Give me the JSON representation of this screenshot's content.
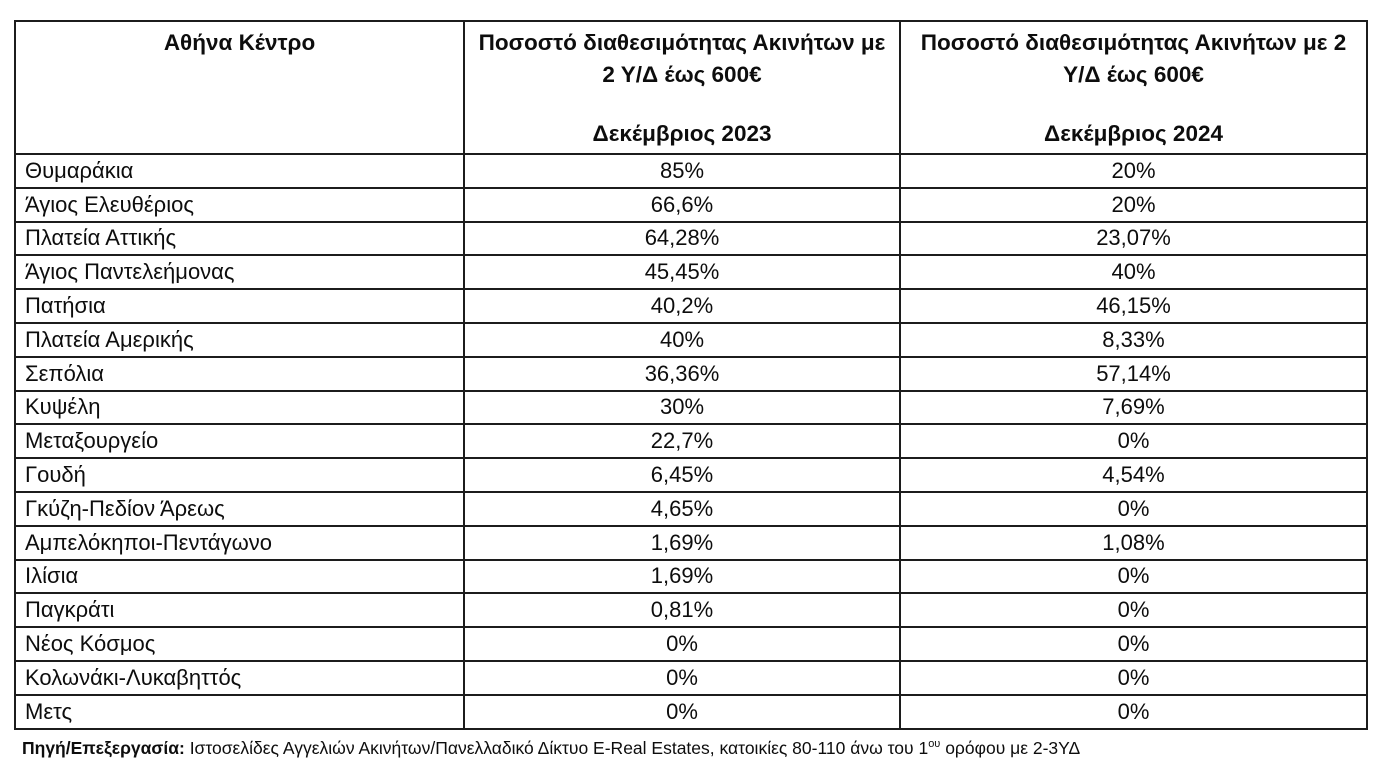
{
  "table": {
    "columns": [
      {
        "id": "area",
        "title": "Αθήνα Κέντρο",
        "period": ""
      },
      {
        "id": "dec2023",
        "title": "Ποσοστό διαθεσιμότητας Ακινήτων με 2 Υ/Δ έως 600€",
        "period": "Δεκέμβριος 2023"
      },
      {
        "id": "dec2024",
        "title": "Ποσοστό διαθεσιμότητας Ακινήτων με 2 Υ/Δ έως 600€",
        "period": "Δεκέμβριος 2024"
      }
    ],
    "rows": [
      [
        "Θυμαράκια",
        "85%",
        "20%"
      ],
      [
        "Άγιος Ελευθέριος",
        "66,6%",
        "20%"
      ],
      [
        "Πλατεία Αττικής",
        "64,28%",
        "23,07%"
      ],
      [
        "Άγιος Παντελεήμονας",
        "45,45%",
        "40%"
      ],
      [
        "Πατήσια",
        "40,2%",
        "46,15%"
      ],
      [
        "Πλατεία Αμερικής",
        "40%",
        "8,33%"
      ],
      [
        "Σεπόλια",
        "36,36%",
        "57,14%"
      ],
      [
        "Κυψέλη",
        "30%",
        "7,69%"
      ],
      [
        "Μεταξουργείο",
        "22,7%",
        "0%"
      ],
      [
        "Γουδή",
        "6,45%",
        "4,54%"
      ],
      [
        "Γκύζη-Πεδίον Άρεως",
        "4,65%",
        "0%"
      ],
      [
        "Αμπελόκηποι-Πεντάγωνο",
        "1,69%",
        "1,08%"
      ],
      [
        "Ιλίσια",
        "1,69%",
        "0%"
      ],
      [
        "Παγκράτι",
        "0,81%",
        "0%"
      ],
      [
        "Νέος Κόσμος",
        "0%",
        "0%"
      ],
      [
        "Κολωνάκι-Λυκαβηττός",
        "0%",
        "0%"
      ],
      [
        "Μετς",
        "0%",
        "0%"
      ]
    ]
  },
  "source_note": {
    "label": "Πηγή/Επεξεργασία:",
    "text_before_sup": " Ιστοσελίδες Αγγελιών Ακινήτων/Πανελλαδικό Δίκτυο E-Real Estates, κατοικίες 80-110 άνω του 1",
    "sup": "ου",
    "text_after_sup": " ορόφου με 2-3ΥΔ"
  },
  "colors": {
    "border": "#1c1c1c",
    "text": "#0d0d0d",
    "background": "#ffffff"
  }
}
